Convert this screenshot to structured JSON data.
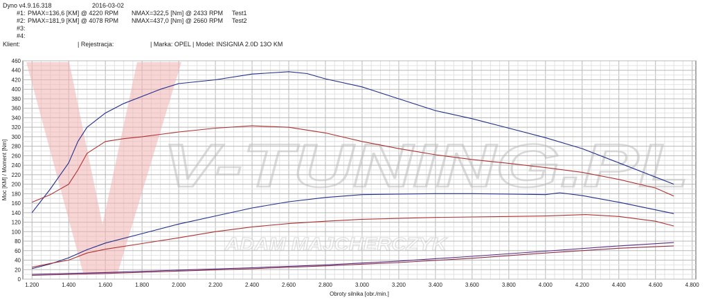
{
  "header": {
    "app_version": "Dyno v4.9.16.318",
    "date": "2016-03-02",
    "runs": [
      {
        "id": "#1:",
        "pmax": "PMAX=136,6 [KM] @ 4220 RPM",
        "nmax": "NMAX=322,5 [Nm] @ 2433 RPM",
        "name": "Test1"
      },
      {
        "id": "#2:",
        "pmax": "PMAX=181,9 [KM] @ 4078 RPM",
        "nmax": "NMAX=437,0 [Nm] @ 2660 RPM",
        "name": "Test2"
      },
      {
        "id": "#3:",
        "pmax": "",
        "nmax": "",
        "name": ""
      },
      {
        "id": "#4:",
        "pmax": "",
        "nmax": "",
        "name": ""
      }
    ],
    "client_label": "Klient:",
    "registration_label": "| Rejestracja:",
    "vehicle_label": "| Marka: OPEL | Model: INSIGNIA 2.0D 13O KM"
  },
  "watermark": {
    "logo_text": "V-TUNING.PL",
    "signature_text": "ADAM MAJCHERCZYK"
  },
  "chart_data": {
    "type": "line",
    "xlabel": "Obroty silnika [obr./min.]",
    "ylabel": "Moc [KM] / Moment [Nm]",
    "xlim": [
      1150,
      4820
    ],
    "ylim": [
      0,
      460
    ],
    "x_ticks": [
      "1.200",
      "1.400",
      "1.600",
      "1.800",
      "2.000",
      "2.200",
      "2.400",
      "2.600",
      "2.800",
      "3.000",
      "3.200",
      "3.400",
      "3.600",
      "3.800",
      "4.000",
      "4.200",
      "4.400",
      "4.600",
      "4.800"
    ],
    "y_ticks": [
      "0",
      "20",
      "40",
      "60",
      "80",
      "100",
      "120",
      "140",
      "160",
      "180",
      "200",
      "220",
      "240",
      "260",
      "280",
      "300",
      "320",
      "340",
      "360",
      "380",
      "400",
      "420",
      "440",
      "460"
    ],
    "grid": true,
    "colors": {
      "test1": "#c0392b",
      "test2": "#2c3e9e",
      "loss": "#6b2f7a",
      "watermark": "#e8a6a6"
    },
    "series": [
      {
        "name": "Test2",
        "quantity": "torque",
        "color": "#1f2d8c",
        "x": [
          1200,
          1300,
          1400,
          1450,
          1500,
          1600,
          1700,
          1800,
          1900,
          2000,
          2200,
          2400,
          2600,
          2700,
          2800,
          3000,
          3200,
          3400,
          3600,
          3800,
          4000,
          4200,
          4400,
          4600,
          4700
        ],
        "y": [
          140,
          190,
          245,
          290,
          320,
          350,
          370,
          385,
          400,
          412,
          420,
          432,
          437,
          433,
          422,
          405,
          380,
          355,
          338,
          318,
          298,
          275,
          245,
          215,
          200
        ]
      },
      {
        "name": "Test1",
        "quantity": "torque",
        "color": "#b03030",
        "x": [
          1200,
          1300,
          1400,
          1450,
          1500,
          1600,
          1700,
          1800,
          1900,
          2000,
          2200,
          2400,
          2600,
          2800,
          3000,
          3200,
          3400,
          3600,
          3800,
          4000,
          4200,
          4400,
          4600,
          4700
        ],
        "y": [
          162,
          178,
          200,
          230,
          265,
          290,
          296,
          300,
          305,
          310,
          318,
          323,
          320,
          308,
          290,
          275,
          262,
          252,
          244,
          235,
          225,
          210,
          192,
          175
        ]
      },
      {
        "name": "Test2",
        "quantity": "power",
        "color": "#1f2d8c",
        "x": [
          1200,
          1300,
          1400,
          1500,
          1600,
          1800,
          2000,
          2200,
          2400,
          2600,
          2800,
          3000,
          3200,
          3400,
          3600,
          3800,
          4000,
          4078,
          4200,
          4400,
          4600,
          4700
        ],
        "y": [
          22,
          32,
          45,
          62,
          76,
          96,
          116,
          133,
          150,
          163,
          172,
          178,
          179,
          180,
          180,
          179,
          178,
          182,
          176,
          162,
          146,
          138
        ]
      },
      {
        "name": "Test1",
        "quantity": "power",
        "color": "#b03030",
        "x": [
          1200,
          1300,
          1400,
          1500,
          1600,
          1800,
          2000,
          2200,
          2400,
          2600,
          2800,
          3000,
          3200,
          3400,
          3600,
          3800,
          4000,
          4220,
          4400,
          4600,
          4700
        ],
        "y": [
          25,
          33,
          40,
          55,
          63,
          75,
          87,
          100,
          110,
          117,
          122,
          126,
          128,
          130,
          131,
          132,
          133,
          136,
          132,
          122,
          112
        ]
      },
      {
        "name": "Test2",
        "quantity": "loss",
        "color": "#5a2a80",
        "x": [
          1200,
          1600,
          2000,
          2400,
          2800,
          3200,
          3600,
          4000,
          4400,
          4700
        ],
        "y": [
          10,
          14,
          19,
          24,
          30,
          38,
          48,
          59,
          70,
          77
        ]
      },
      {
        "name": "Test1",
        "quantity": "loss",
        "color": "#8a2f4a",
        "x": [
          1200,
          1600,
          2000,
          2400,
          2800,
          3200,
          3600,
          4000,
          4400,
          4700
        ],
        "y": [
          8,
          12,
          17,
          22,
          28,
          35,
          44,
          55,
          65,
          70
        ]
      }
    ]
  }
}
